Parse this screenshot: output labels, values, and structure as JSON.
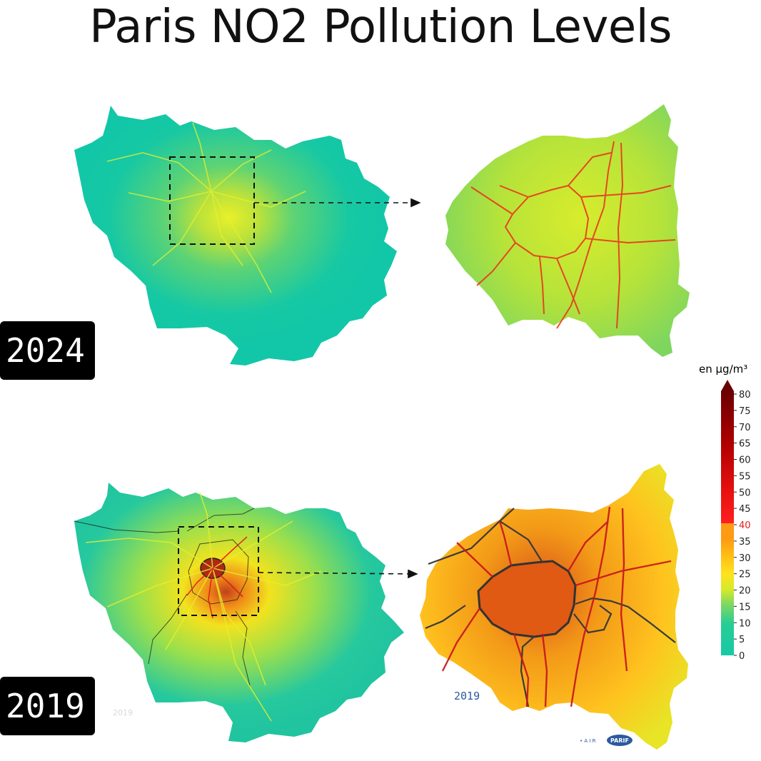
{
  "title": "Paris NO2 Pollution Levels",
  "panels": [
    {
      "year": "2024"
    },
    {
      "year": "2019"
    }
  ],
  "legend": {
    "unit": "en µg/m³",
    "ticks": [
      "80",
      "75",
      "70",
      "65",
      "60",
      "55",
      "50",
      "45",
      "40",
      "35",
      "30",
      "25",
      "20",
      "15",
      "10",
      "5",
      "0"
    ],
    "threshold_tick": "40",
    "colors": {
      "low": "#18c9a3",
      "mid": "#e6ec22",
      "high": "#ffb000",
      "threshold": "#ff1a1a",
      "max": "#6b0000"
    }
  },
  "stamps": {
    "year_2019_zoom": "2019",
    "year_2019_region": "2019",
    "logo_text": "PARIF",
    "logo_prefix": "• A I R"
  },
  "colors": {
    "region_2024": "#14c9a6",
    "zoom_2024": "#b9e33a",
    "region_2019": "#22c4a0",
    "zoom_2019": "#ffb92a",
    "road_high": "#d7191c",
    "arrow": "#111111"
  }
}
